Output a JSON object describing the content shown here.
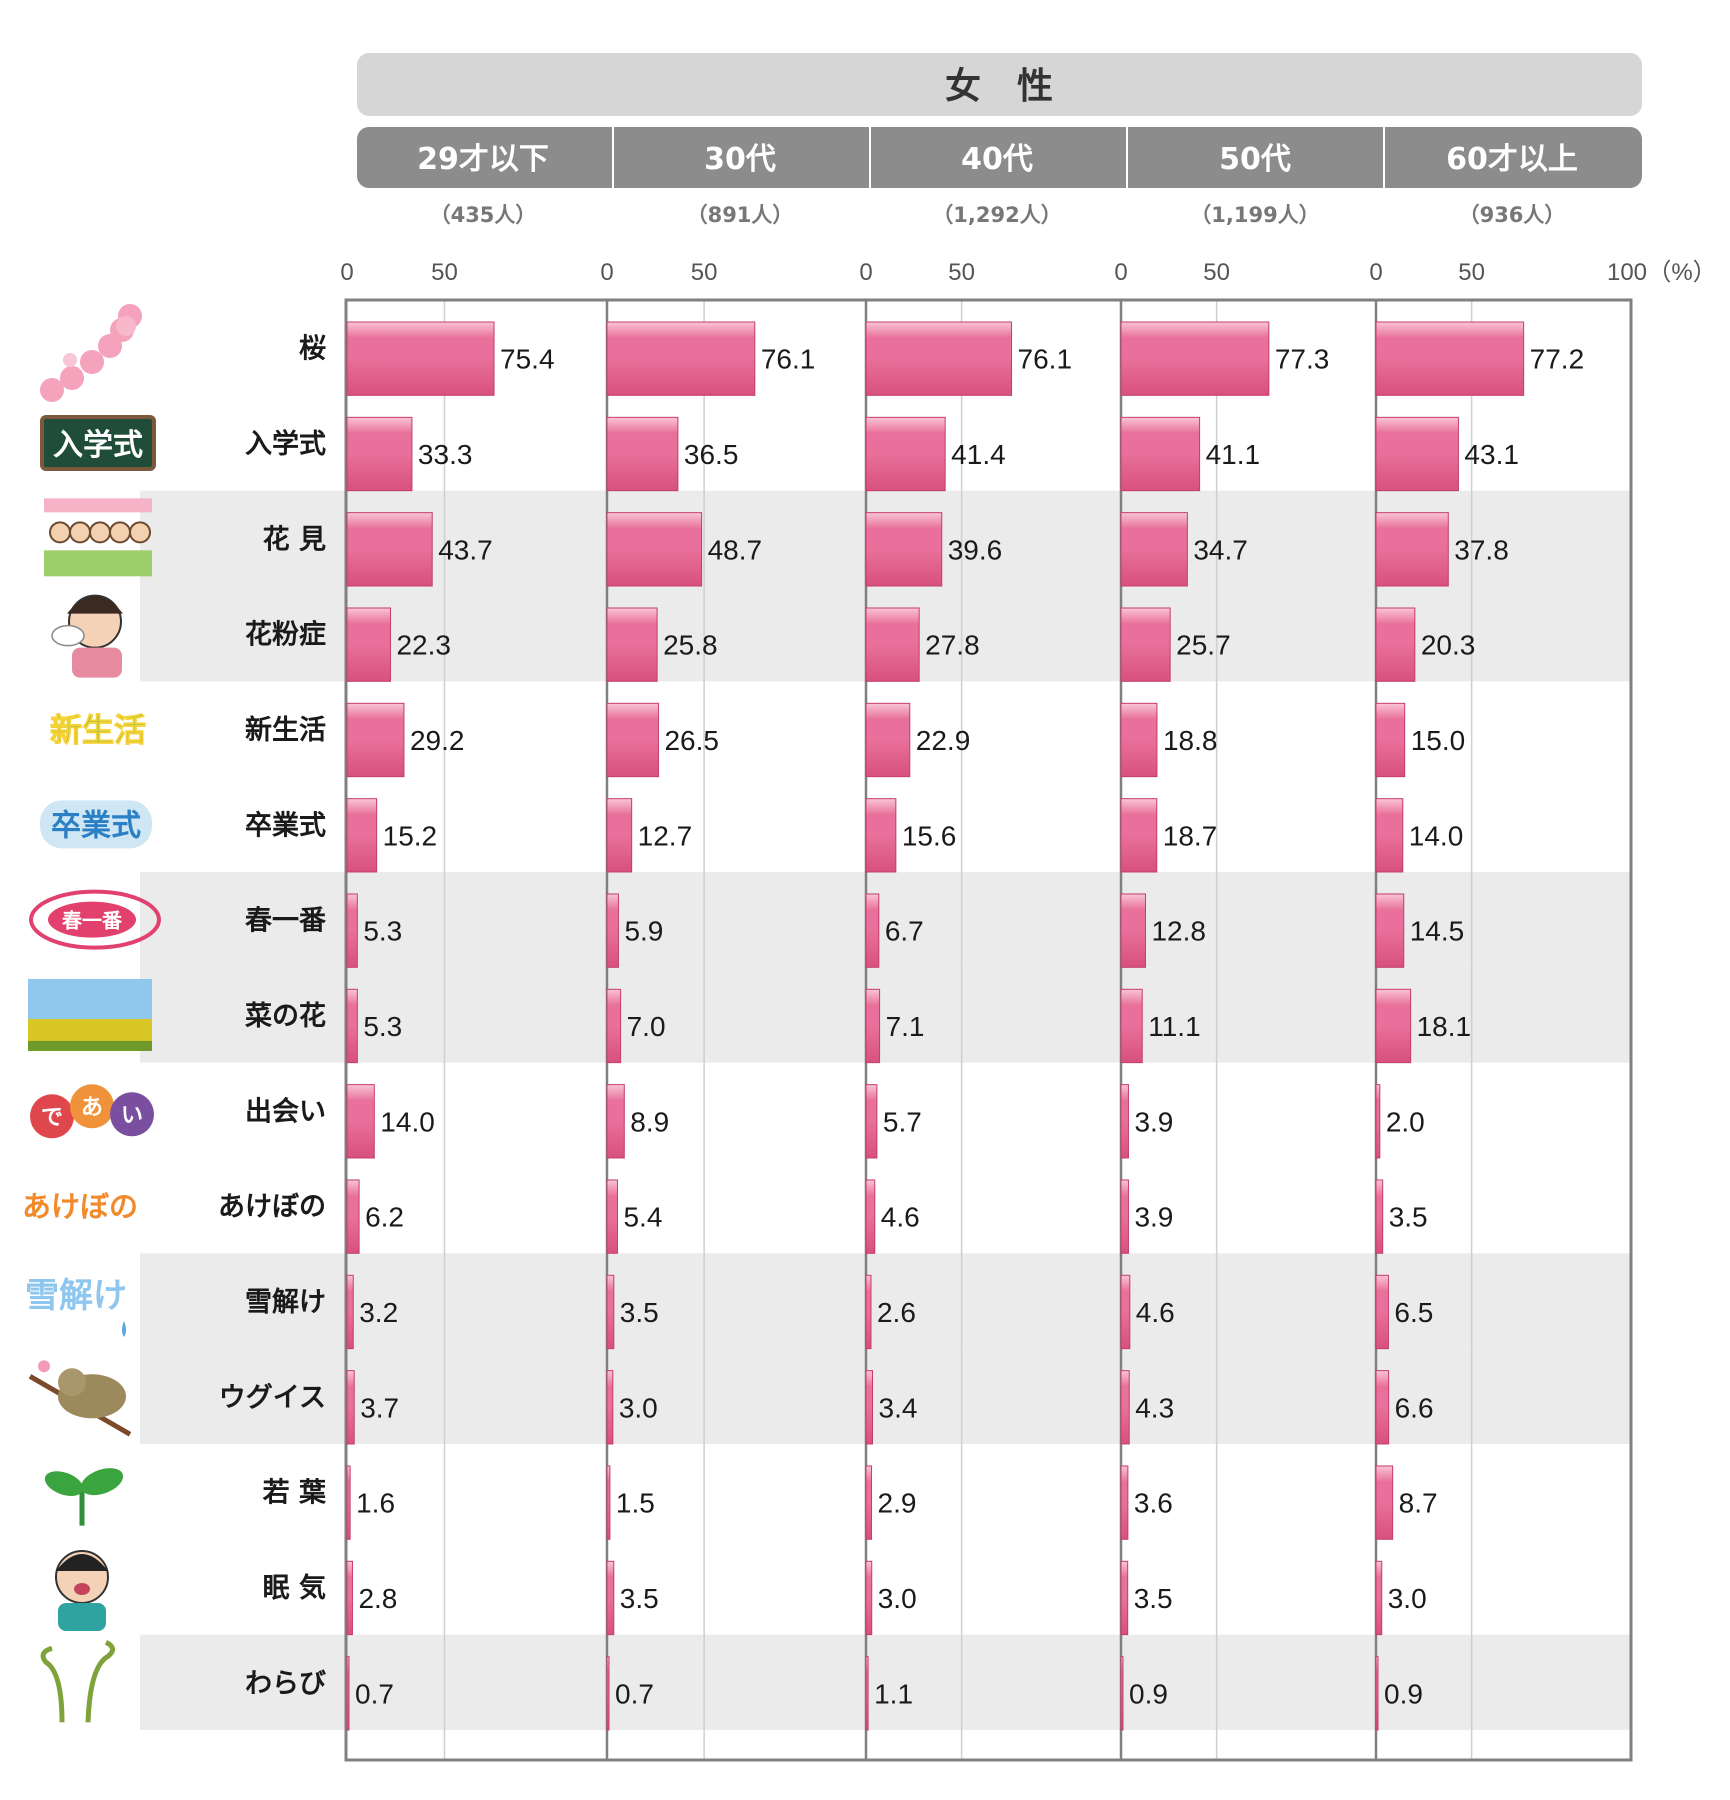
{
  "chart_data": {
    "type": "bar",
    "orientation": "horizontal",
    "title": "女　性",
    "unit_label": "（%）",
    "xlim": [
      0,
      100
    ],
    "ticks": [
      "0",
      "50"
    ],
    "last_tick": "100",
    "grid": true,
    "categories": [
      "桜",
      "入学式",
      "花 見",
      "花粉症",
      "新生活",
      "卒業式",
      "春一番",
      "菜の花",
      "出会い",
      "あけぼの",
      "雪解け",
      "ウグイス",
      "若 葉",
      "眠 気",
      "わらび"
    ],
    "category_icons": [
      "sakura-map-icon",
      "nyugakushiki-sign-icon",
      "hanami-party-icon",
      "hay-fever-woman-icon",
      "shinseikatsu-text-icon",
      "sotsugyoshiki-text-icon",
      "haruichiban-wind-icon",
      "rapeseed-field-icon",
      "deai-bubbles-icon",
      "akebono-text-icon",
      "yukidoke-text-icon",
      "bush-warbler-icon",
      "sprout-icon",
      "yawning-man-icon",
      "bracken-fern-icon"
    ],
    "shaded_rows": [
      2,
      3,
      6,
      7,
      10,
      11,
      14
    ],
    "series": [
      {
        "name": "29才以下",
        "count": "（435人）",
        "values": [
          75.4,
          33.3,
          43.7,
          22.3,
          29.2,
          15.2,
          5.3,
          5.3,
          14.0,
          6.2,
          3.2,
          3.7,
          1.6,
          2.8,
          0.7
        ]
      },
      {
        "name": "30代",
        "count": "（891人）",
        "values": [
          76.1,
          36.5,
          48.7,
          25.8,
          26.5,
          12.7,
          5.9,
          7.0,
          8.9,
          5.4,
          3.5,
          3.0,
          1.5,
          3.5,
          0.7
        ]
      },
      {
        "name": "40代",
        "count": "（1,292人）",
        "values": [
          76.1,
          41.4,
          39.6,
          27.8,
          22.9,
          15.6,
          6.7,
          7.1,
          5.7,
          4.6,
          2.6,
          3.4,
          2.9,
          3.0,
          1.1
        ]
      },
      {
        "name": "50代",
        "count": "（1,199人）",
        "values": [
          77.3,
          41.1,
          34.7,
          25.7,
          18.8,
          18.7,
          12.8,
          11.1,
          3.9,
          3.9,
          4.6,
          4.3,
          3.6,
          3.5,
          0.9
        ]
      },
      {
        "name": "60才以上",
        "count": "（936人）",
        "values": [
          77.2,
          43.1,
          37.8,
          20.3,
          15.0,
          14.0,
          14.5,
          18.1,
          2.0,
          3.5,
          6.5,
          6.6,
          8.7,
          3.0,
          0.9
        ]
      }
    ],
    "colors": {
      "bar_top": "#f9c5d5",
      "bar_mid": "#e8709a",
      "bar_bottom": "#d8507e",
      "bar_stroke": "#c43d6c",
      "header_main": "#d6d6d6",
      "header_group": "#8c8c8c",
      "row_shade": "#ebebeb",
      "grid": "#cfcfcf",
      "frame": "#808080"
    }
  }
}
